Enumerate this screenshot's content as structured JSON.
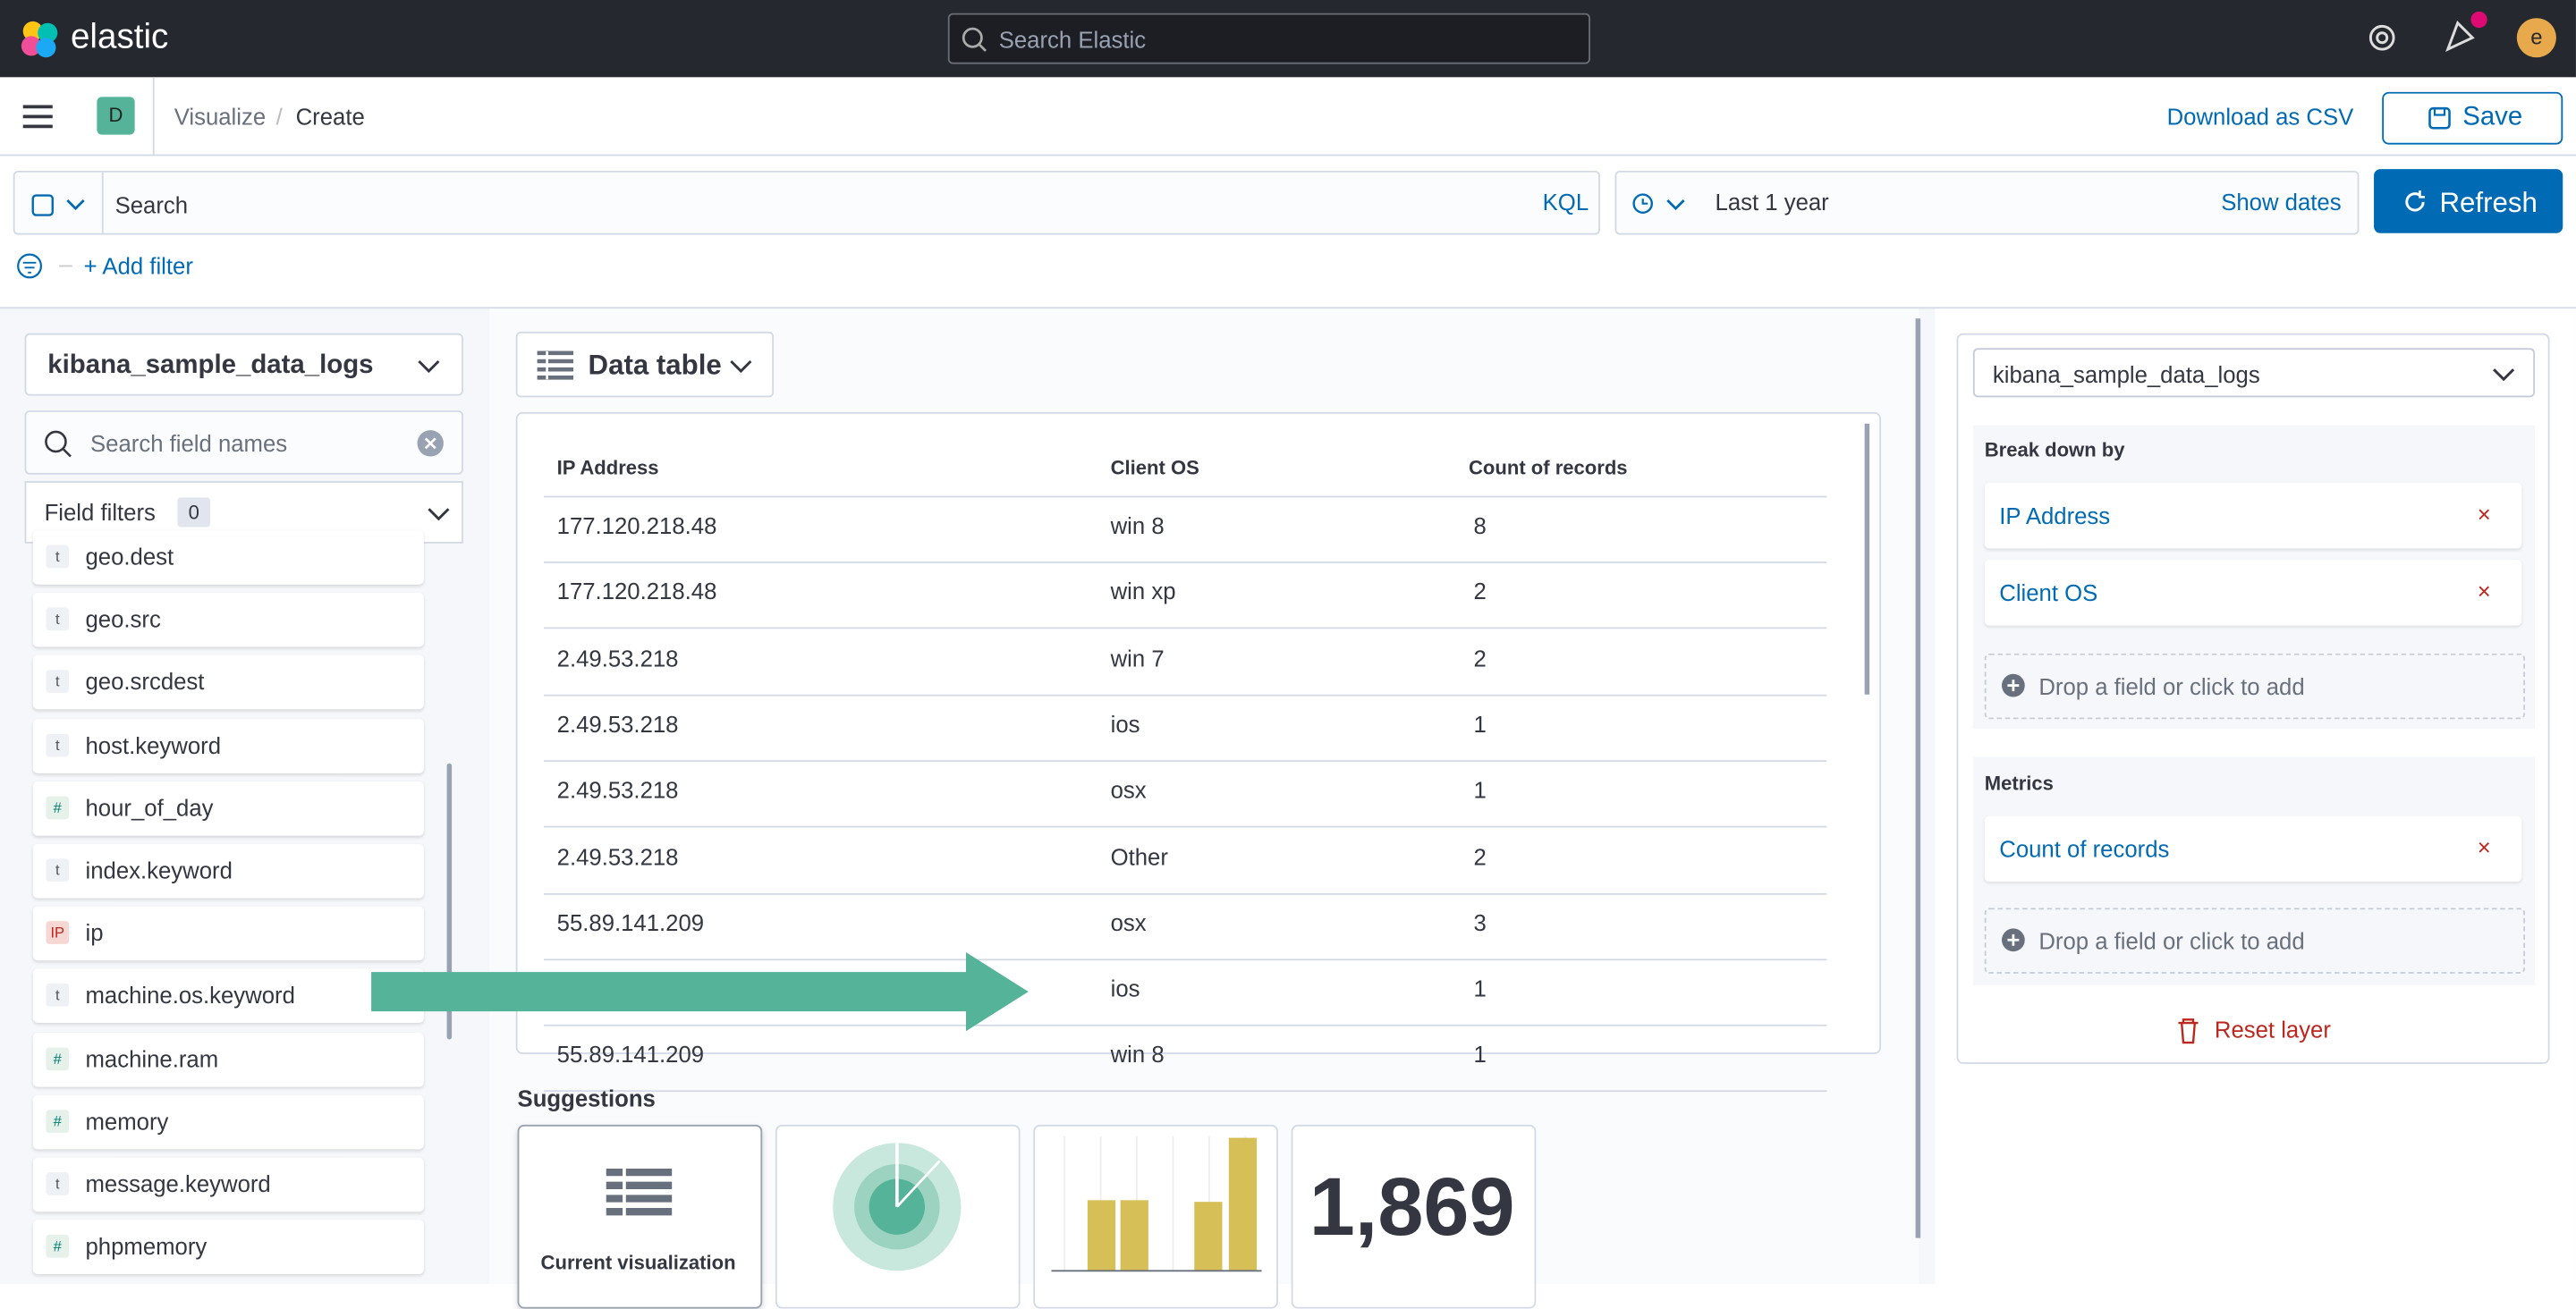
{
  "header": {
    "brand": "elastic",
    "search_placeholder": "Search Elastic",
    "avatar": "e"
  },
  "nav": {
    "space": "D",
    "breadcrumbs": [
      "Visualize",
      "Create"
    ],
    "download": "Download as CSV",
    "save": "Save"
  },
  "query": {
    "placeholder": "Search",
    "language": "KQL",
    "date": "Last 1 year",
    "show_dates": "Show dates",
    "refresh": "Refresh",
    "add_filter": "+ Add filter"
  },
  "fields": {
    "index": "kibana_sample_data_logs",
    "search_placeholder": "Search field names",
    "filters_label": "Field filters",
    "filters_count": "0",
    "items": [
      {
        "type": "t",
        "name": "geo.dest"
      },
      {
        "type": "t",
        "name": "geo.src"
      },
      {
        "type": "t",
        "name": "geo.srcdest"
      },
      {
        "type": "t",
        "name": "host.keyword"
      },
      {
        "type": "#",
        "name": "hour_of_day"
      },
      {
        "type": "t",
        "name": "index.keyword"
      },
      {
        "type": "IP",
        "name": "ip"
      },
      {
        "type": "t",
        "name": "machine.os.keyword"
      },
      {
        "type": "#",
        "name": "machine.ram"
      },
      {
        "type": "#",
        "name": "memory"
      },
      {
        "type": "t",
        "name": "message.keyword"
      },
      {
        "type": "#",
        "name": "phpmemory"
      }
    ]
  },
  "visualization": {
    "type": "Data table",
    "table": {
      "columns": [
        "IP Address",
        "Client OS",
        "Count of records"
      ],
      "rows": [
        [
          "177.120.218.48",
          "win 8",
          8
        ],
        [
          "177.120.218.48",
          "win xp",
          2
        ],
        [
          "2.49.53.218",
          "win 7",
          2
        ],
        [
          "2.49.53.218",
          "ios",
          1
        ],
        [
          "2.49.53.218",
          "osx",
          1
        ],
        [
          "2.49.53.218",
          "Other",
          2
        ],
        [
          "55.89.141.209",
          "osx",
          3
        ],
        [
          null,
          "ios",
          1
        ],
        [
          "55.89.141.209",
          "win 8",
          1
        ]
      ]
    }
  },
  "suggestions": {
    "title": "Suggestions",
    "current": "Current visualization",
    "metric": "1,869"
  },
  "config": {
    "index": "kibana_sample_data_logs",
    "breakdown_title": "Break down by",
    "breakdown": [
      "IP Address",
      "Client OS"
    ],
    "drop_hint": "Drop a field or click to add",
    "metrics_title": "Metrics",
    "metrics": [
      "Count of records"
    ],
    "drop_hint_metrics": "Drop a field or click to add",
    "reset": "Reset layer"
  }
}
